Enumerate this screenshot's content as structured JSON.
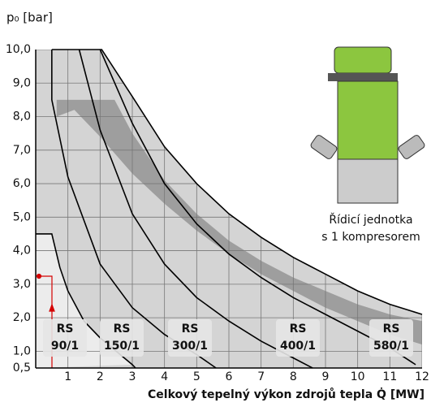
{
  "chart_data": {
    "type": "line",
    "ylabel": "p₀ [bar]",
    "xlabel": "Celkový tepelný výkon zdrojů tepla Q̇ [MW]",
    "xlim": [
      0,
      12
    ],
    "ylim": [
      0.5,
      10
    ],
    "xticks": [
      1,
      2,
      3,
      4,
      5,
      6,
      7,
      8,
      9,
      10,
      11,
      12
    ],
    "yticks": [
      {
        "value": 0.5,
        "label": "0,5"
      },
      {
        "value": 1,
        "label": "1,0"
      },
      {
        "value": 2,
        "label": "2,0"
      },
      {
        "value": 3,
        "label": "3,0"
      },
      {
        "value": 4,
        "label": "4,0"
      },
      {
        "value": 5,
        "label": "5,0"
      },
      {
        "value": 6,
        "label": "6,0"
      },
      {
        "value": 7,
        "label": "7,0"
      },
      {
        "value": 8,
        "label": "8,0"
      },
      {
        "value": 9,
        "label": "9,0"
      },
      {
        "value": 10,
        "label": "10,0"
      }
    ],
    "grid": true,
    "areas": [
      {
        "color": "#d4d4d4",
        "x": [
          0,
          2.05,
          3,
          4,
          5,
          6,
          7,
          8,
          9,
          10,
          11,
          12,
          12,
          0
        ],
        "y": [
          10,
          10,
          8.6,
          7.1,
          6.0,
          5.1,
          4.4,
          3.8,
          3.3,
          2.8,
          2.4,
          2.1,
          0.5,
          0.5
        ]
      },
      {
        "color": "#8c8c8c",
        "x": [
          0.65,
          2.45,
          3,
          4,
          5,
          6,
          7,
          8,
          9,
          10,
          11,
          12,
          12,
          11,
          10,
          9,
          8,
          7,
          6,
          5,
          4,
          3,
          2,
          1.2,
          0.65
        ],
        "y": [
          8.5,
          8.5,
          7.5,
          6.1,
          5.1,
          4.3,
          3.7,
          3.2,
          2.8,
          2.4,
          2.1,
          1.9,
          1.2,
          1.5,
          1.9,
          2.3,
          2.8,
          3.3,
          3.9,
          4.6,
          5.4,
          6.3,
          7.4,
          8.2,
          8.0
        ]
      },
      {
        "color": "#ececec",
        "x": [
          0,
          0.5,
          0.75,
          1,
          1.5,
          2,
          2.5,
          3,
          0
        ],
        "y": [
          4.5,
          4.5,
          3.5,
          2.8,
          1.9,
          1.4,
          1.0,
          0.6,
          0.5
        ]
      }
    ],
    "series": [
      {
        "color": "#000000",
        "x": [
          0,
          0.5,
          0.75,
          1,
          1.5,
          2,
          2.5,
          3,
          3.1
        ],
        "y": [
          4.5,
          4.5,
          3.5,
          2.8,
          1.9,
          1.4,
          1.0,
          0.6,
          0.5
        ]
      },
      {
        "color": "#000000",
        "x": [
          0.5,
          0.5,
          1,
          2,
          3,
          4,
          5,
          5.6
        ],
        "y": [
          10,
          8.5,
          6.2,
          3.6,
          2.3,
          1.5,
          0.9,
          0.5
        ]
      },
      {
        "color": "#000000",
        "x": [
          1.35,
          2,
          3,
          4,
          5,
          6,
          7,
          8,
          8.6
        ],
        "y": [
          10,
          7.6,
          5.1,
          3.6,
          2.6,
          1.9,
          1.3,
          0.8,
          0.5
        ]
      },
      {
        "color": "#000000",
        "x": [
          2,
          3,
          4,
          5,
          6,
          7,
          8,
          9,
          10,
          11,
          11.8
        ],
        "y": [
          10,
          7.8,
          6.0,
          4.8,
          3.9,
          3.2,
          2.6,
          2.1,
          1.6,
          1.1,
          0.6
        ]
      },
      {
        "color": "#000000",
        "x": [
          0.5,
          2.05,
          3,
          4,
          5,
          6,
          7,
          8,
          9,
          10,
          11,
          12
        ],
        "y": [
          10,
          10,
          8.6,
          7.1,
          6.0,
          5.1,
          4.4,
          3.8,
          3.3,
          2.8,
          2.4,
          2.1
        ]
      }
    ],
    "annotations": [
      [
        "RS",
        "90/1"
      ],
      [
        "RS",
        "150/1"
      ],
      [
        "RS",
        "300/1"
      ],
      [
        "RS",
        "400/1"
      ],
      [
        "RS",
        "580/1"
      ]
    ]
  },
  "caption": [
    "Řídicí jednotka",
    "s 1 kompresorem"
  ]
}
